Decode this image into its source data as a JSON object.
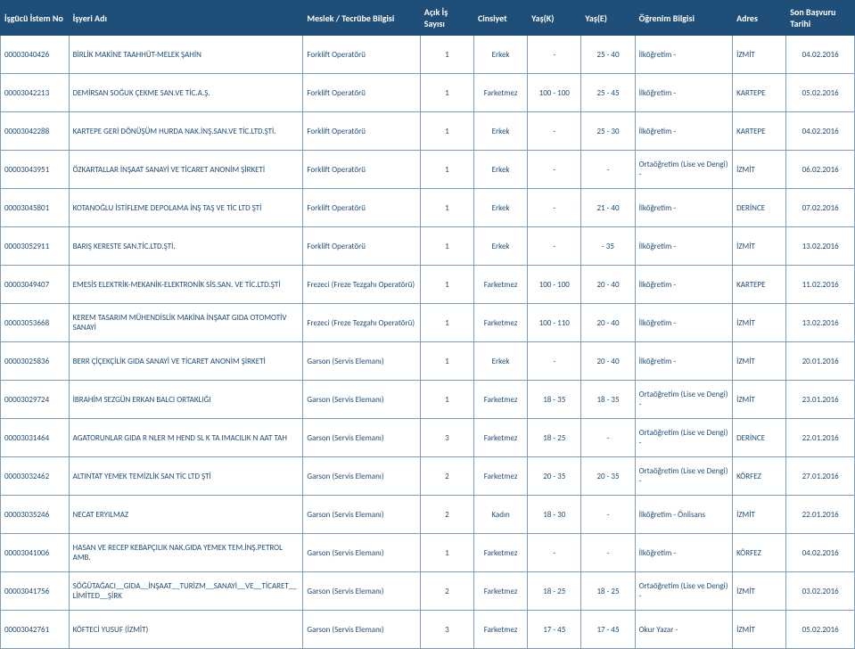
{
  "columns": [
    "İşgücü İstem No",
    "İşyeri Adı",
    "Meslek / Tecrübe Bilgisi",
    "Açık İş Sayısı",
    "Cinsiyet",
    "Yaş(K)",
    "Yaş(E)",
    "Öğrenim Bilgisi",
    "Adres",
    "Son Başvuru Tarihi"
  ],
  "rows": [
    {
      "istem": "00003040426",
      "isyeri": "BİRLİK MAKİNE TAAHHÜT-MELEK ŞAHİN",
      "meslek": "Forklift Operatörü",
      "acik": "1",
      "cins": "Erkek",
      "yask": "-",
      "yase": "25 - 40",
      "ogr": "İlköğretim -",
      "adres": "İZMİT",
      "tarih": "04.02.2016"
    },
    {
      "istem": "00003042213",
      "isyeri": "DEMİRSAN SOĞUK ÇEKME SAN.VE TİC.A.Ş.",
      "meslek": "Forklift Operatörü",
      "acik": "1",
      "cins": "Farketmez",
      "yask": "100 - 100",
      "yase": "25 - 45",
      "ogr": "İlköğretim -",
      "adres": "KARTEPE",
      "tarih": "05.02.2016"
    },
    {
      "istem": "00003042288",
      "isyeri": "KARTEPE GERİ DÖNÜŞÜM HURDA NAK.İNŞ.SAN.VE TİC.LTD.ŞTİ.",
      "meslek": "Forklift Operatörü",
      "acik": "1",
      "cins": "Erkek",
      "yask": "-",
      "yase": "25 - 30",
      "ogr": "İlköğretim -",
      "adres": "KARTEPE",
      "tarih": "04.02.2016"
    },
    {
      "istem": "00003043951",
      "isyeri": "ÖZKARTALLAR İNŞAAT SANAYİ VE TİCARET ANONİM ŞİRKETİ",
      "meslek": "Forklift Operatörü",
      "acik": "1",
      "cins": "Erkek",
      "yask": "-",
      "yase": "-",
      "ogr": "Ortaöğretim (Lise ve Dengi) -",
      "adres": "İZMİT",
      "tarih": "06.02.2016"
    },
    {
      "istem": "00003045801",
      "isyeri": "KOTANOĞLU İSTİFLEME DEPOLAMA İNŞ TAŞ VE TİC LTD ŞTİ",
      "meslek": "Forklift Operatörü",
      "acik": "1",
      "cins": "Erkek",
      "yask": "-",
      "yase": "21 - 40",
      "ogr": "İlköğretim -",
      "adres": "DERİNCE",
      "tarih": "07.02.2016"
    },
    {
      "istem": "00003052911",
      "isyeri": "BARIŞ KERESTE SAN.TİC.LTD.ŞTİ.",
      "meslek": "Forklift Operatörü",
      "acik": "1",
      "cins": "Erkek",
      "yask": "-",
      "yase": "- 35",
      "ogr": "İlköğretim -",
      "adres": "İZMİT",
      "tarih": "13.02.2016"
    },
    {
      "istem": "00003049407",
      "isyeri": "EMESİS ELEKTRİK-MEKANİK-ELEKTRONİK SİS.SAN. VE TİC.LTD.ŞTİ",
      "meslek": "Frezeci (Freze Tezgahı Operatörü)",
      "acik": "1",
      "cins": "Farketmez",
      "yask": "100 - 100",
      "yase": "20 - 40",
      "ogr": "İlköğretim -",
      "adres": "KARTEPE",
      "tarih": "11.02.2016"
    },
    {
      "istem": "00003053668",
      "isyeri": "KEREM TASARIM MÜHENDİSLİK MAKİNA İNŞAAT GIDA OTOMOTİV SANAYİ",
      "meslek": "Frezeci (Freze Tezgahı Operatörü)",
      "acik": "1",
      "cins": "Farketmez",
      "yask": "100 - 110",
      "yase": "20 - 40",
      "ogr": "İlköğretim -",
      "adres": "İZMİT",
      "tarih": "13.02.2016"
    },
    {
      "istem": "00003025836",
      "isyeri": "BERR ÇİÇEKÇİLİK GIDA SANAYİ VE TİCARET ANONİM ŞİRKETİ",
      "meslek": "Garson (Servis Elemanı)",
      "acik": "1",
      "cins": "Erkek",
      "yask": "-",
      "yase": "20 - 40",
      "ogr": "İlköğretim -",
      "adres": "İZMİT",
      "tarih": "20.01.2016"
    },
    {
      "istem": "00003029724",
      "isyeri": "İBRAHİM SEZGÜN ERKAN BALCI ORTAKLIĞI",
      "meslek": "Garson (Servis Elemanı)",
      "acik": "1",
      "cins": "Farketmez",
      "yask": "18 - 35",
      "yase": "18 - 35",
      "ogr": "Ortaöğretim (Lise ve Dengi) -",
      "adres": "İZMİT",
      "tarih": "23.01.2016"
    },
    {
      "istem": "00003031464",
      "isyeri": "AGATORUNLAR GIDA R NLER M HEND SL K TA IMACILIK N AAT TAH",
      "meslek": "Garson (Servis Elemanı)",
      "acik": "3",
      "cins": "Farketmez",
      "yask": "18 - 25",
      "yase": "-",
      "ogr": "Ortaöğretim (Lise ve Dengi) -",
      "adres": "DERİNCE",
      "tarih": "22.01.2016"
    },
    {
      "istem": "00003032462",
      "isyeri": "ALTINTAT YEMEK TEMİZLİK SAN TİC LTD ŞTİ",
      "meslek": "Garson (Servis Elemanı)",
      "acik": "2",
      "cins": "Farketmez",
      "yask": "20 - 35",
      "yase": "20 - 35",
      "ogr": "Ortaöğretim (Lise ve Dengi) -",
      "adres": "KÖRFEZ",
      "tarih": "27.01.2016"
    },
    {
      "istem": "00003035246",
      "isyeri": "NECAT ERYILMAZ",
      "meslek": "Garson (Servis Elemanı)",
      "acik": "2",
      "cins": "Kadın",
      "yask": "18 - 30",
      "yase": "-",
      "ogr": "İlköğretim - Önlisans",
      "adres": "İZMİT",
      "tarih": "22.01.2016"
    },
    {
      "istem": "00003041006",
      "isyeri": "HASAN VE RECEP KEBAPÇILIK NAK.GIDA YEMEK TEM.İNŞ.PETROL AMB.",
      "meslek": "Garson (Servis Elemanı)",
      "acik": "1",
      "cins": "Farketmez",
      "yask": "-",
      "yase": "-",
      "ogr": "İlköğretim -",
      "adres": "KÖRFEZ",
      "tarih": "04.02.2016"
    },
    {
      "istem": "00003041756",
      "isyeri": "SÖĞÜTAĞACI__GIDA__İNŞAAT__TURİZM__SANAYİ__VE__TİCARET__LİMİTED__ŞİRK",
      "meslek": "Garson (Servis Elemanı)",
      "acik": "2",
      "cins": "Farketmez",
      "yask": "18 - 25",
      "yase": "18 - 25",
      "ogr": "Ortaöğretim (Lise ve Dengi) -",
      "adres": "İZMİT",
      "tarih": "03.02.2016"
    },
    {
      "istem": "00003042761",
      "isyeri": "KÖFTECİ YUSUF (İZMİT)",
      "meslek": "Garson (Servis Elemanı)",
      "acik": "3",
      "cins": "Farketmez",
      "yask": "17 - 45",
      "yase": "17 - 45",
      "ogr": "Okur Yazar -",
      "adres": "İZMİT",
      "tarih": "05.02.2016"
    }
  ]
}
